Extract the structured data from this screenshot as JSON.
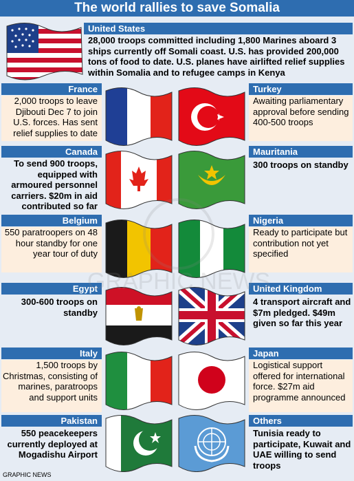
{
  "title": "The world rallies to save Somalia",
  "source": "GRAPHIC NEWS",
  "watermark": "GRAPHIC NEWS",
  "countries": {
    "us": {
      "name": "United States",
      "text": "28,000 troops committed including 1,800 Marines aboard 3 ships currently off Somali coast. U.S. has provided 200,000 tons of food to date. U.S. planes have airlifted relief supplies within Somalia and to refugee camps in Kenya"
    },
    "france": {
      "name": "France",
      "text": "2,000 troops to leave Djibouti Dec 7 to join U.S. forces. Has sent relief supplies to date"
    },
    "turkey": {
      "name": "Turkey",
      "text": "Awaiting parliamentary approval before sending 400-500 troops"
    },
    "canada": {
      "name": "Canada",
      "text": "To send 900 troops, equipped with armoured personnel carriers. $20m in aid contributed so far"
    },
    "mauritania": {
      "name": "Mauritania",
      "text": "300 troops on standby"
    },
    "belgium": {
      "name": "Belgium",
      "text": "550 paratroopers on 48 hour standby for one year tour of duty"
    },
    "nigeria": {
      "name": "Nigeria",
      "text": "Ready to participate but contribution not yet specified"
    },
    "egypt": {
      "name": "Egypt",
      "text": "300-600 troops on standby"
    },
    "uk": {
      "name": "United Kingdom",
      "text": "4 transport aircraft and $7m pledged. $49m given so far this year"
    },
    "italy": {
      "name": "Italy",
      "text": "1,500 troops by Christmas, consisting of marines, paratroops and support units"
    },
    "japan": {
      "name": "Japan",
      "text": "Logistical support offered for international force. $27m aid programme announced"
    },
    "pakistan": {
      "name": "Pakistan",
      "text": "550 peacekeepers currently deployed at Mogadishu Airport"
    },
    "others": {
      "name": "Others",
      "text": "Tunisia ready to participate, Kuwait and UAE willing to send troops"
    }
  },
  "colors": {
    "header_blue": "#2e6db0",
    "background": "#e6ecf4",
    "text_panel": "#fdeede"
  }
}
